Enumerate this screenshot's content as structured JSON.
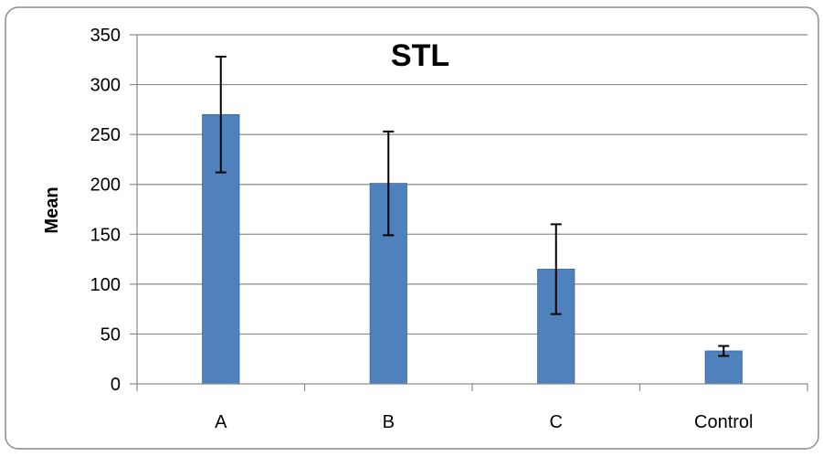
{
  "chart_data": {
    "type": "bar",
    "title": "STL",
    "xlabel": "",
    "ylabel": "Mean",
    "categories": [
      "A",
      "B",
      "C",
      "Control"
    ],
    "series": [
      {
        "values": [
          270,
          201,
          115,
          33
        ],
        "error": [
          58,
          52,
          45,
          5
        ]
      }
    ],
    "ylim": [
      0,
      350
    ],
    "yticks": [
      0,
      50,
      100,
      150,
      200,
      250,
      300,
      350
    ],
    "grid": true,
    "legend": "none",
    "colors": {
      "bar": "#4F81BD",
      "bar_stroke": "#3A6496",
      "error": "#000000",
      "grid": "#8C8C8C",
      "axis": "#8C8C8C",
      "frame": "#8C8C8C",
      "text": "#000000"
    }
  }
}
